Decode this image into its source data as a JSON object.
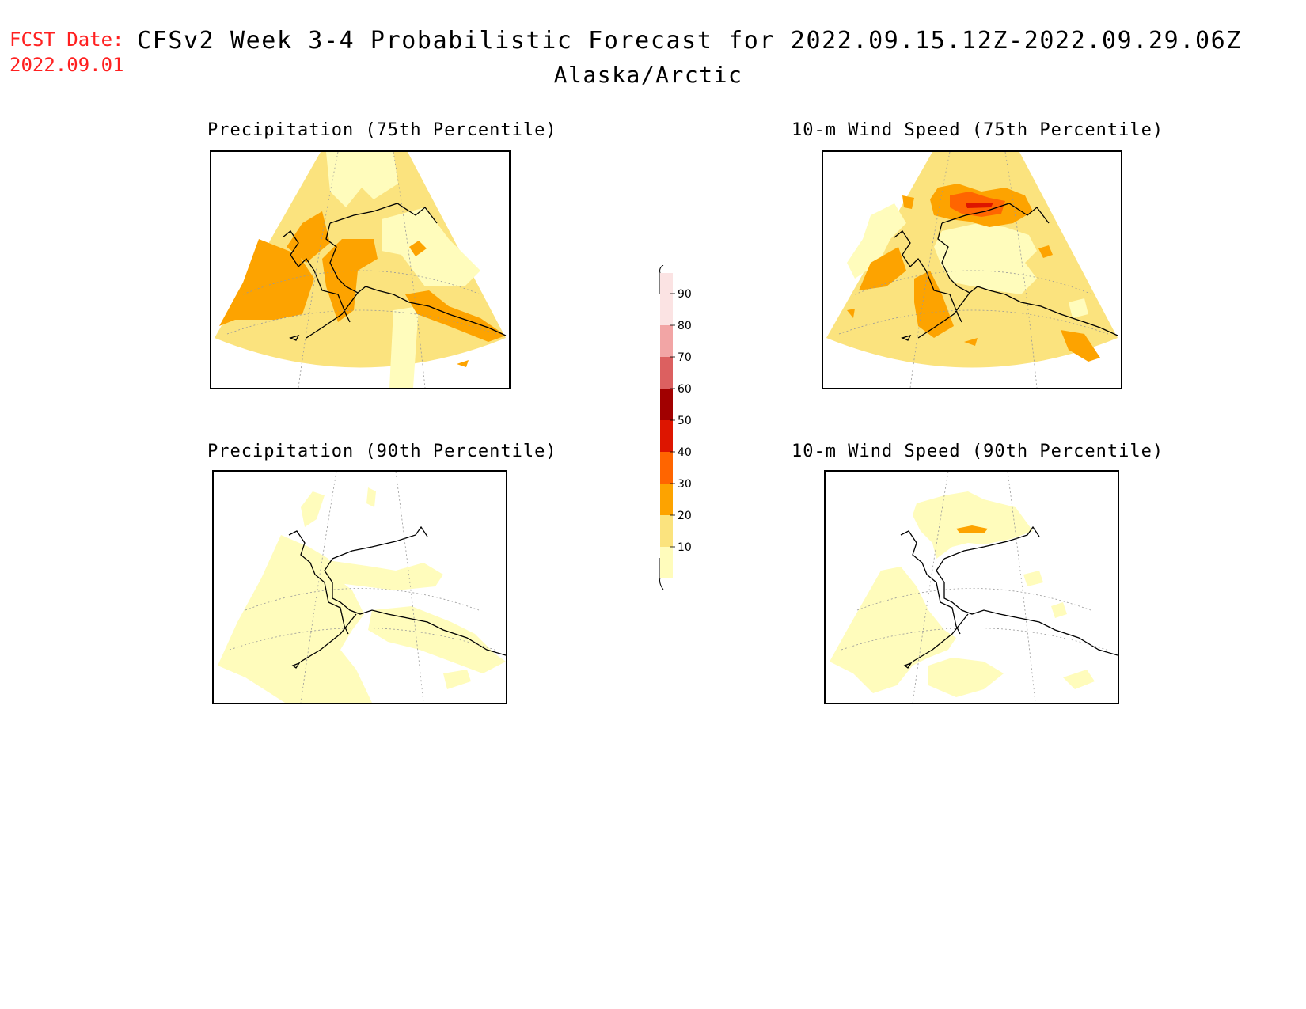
{
  "header": {
    "fcst_label": "FCST Date:",
    "fcst_date": "2022.09.01",
    "title": "CFSv2 Week 3-4 Probabilistic Forecast for 2022.09.15.12Z-2022.09.29.06Z",
    "region": "Alaska/Arctic"
  },
  "panels": [
    {
      "key": "p75",
      "title": "Precipitation (75th Percentile)"
    },
    {
      "key": "p90",
      "title": "Precipitation (90th Percentile)"
    },
    {
      "key": "w75",
      "title": "10-m Wind Speed (75th Percentile)"
    },
    {
      "key": "w90",
      "title": "10-m Wind Speed (90th Percentile)"
    }
  ],
  "colorbar": {
    "labels": [
      "10",
      "20",
      "30",
      "40",
      "50",
      "60",
      "70",
      "80",
      "90"
    ],
    "colors": {
      "c10": "#fffcbc",
      "c20": "#fbe37e",
      "c30": "#fda300",
      "c40": "#ff6500",
      "c50": "#dd1500",
      "c60": "#a10000",
      "c70": "#dc6060",
      "c80": "#f2a5a5",
      "c90": "#fbe3e3"
    }
  }
}
